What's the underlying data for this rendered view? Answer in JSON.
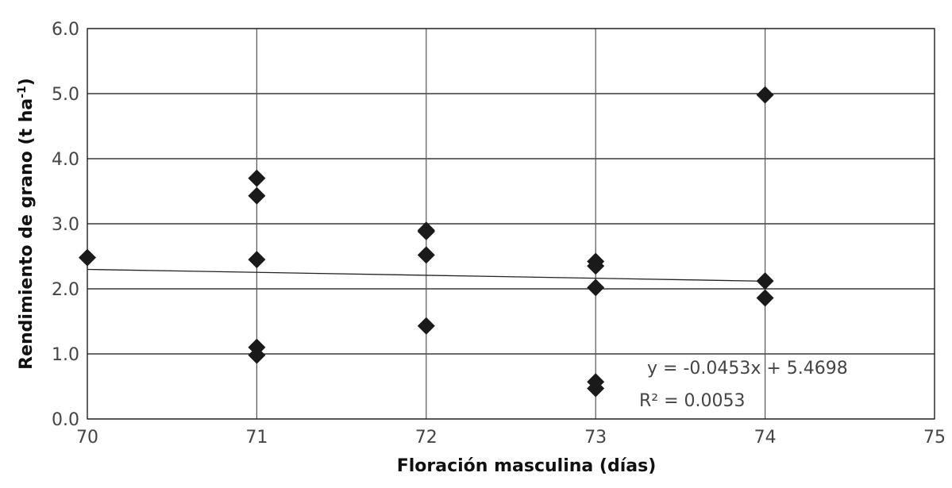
{
  "chart_data": {
    "type": "scatter",
    "title": "",
    "xlabel": "Floración masculina (días)",
    "ylabel": "Rendimiento de grano (t ha-1)",
    "ylabel_main": "Rendimiento de grano (t ha",
    "ylabel_sup": "-1",
    "ylabel_end": ")",
    "xlim": [
      70,
      75
    ],
    "ylim": [
      0,
      6
    ],
    "x_ticks": [
      "70",
      "71",
      "72",
      "73",
      "74",
      "75"
    ],
    "y_ticks": [
      "0.0",
      "1.0",
      "2.0",
      "3.0",
      "4.0",
      "5.0",
      "6.0"
    ],
    "grid": true,
    "marker": "diamond",
    "marker_color": "#1a1a1a",
    "points": [
      {
        "x": 70,
        "y": 2.48
      },
      {
        "x": 71,
        "y": 3.7
      },
      {
        "x": 71,
        "y": 3.43
      },
      {
        "x": 71,
        "y": 2.45
      },
      {
        "x": 71,
        "y": 1.1
      },
      {
        "x": 71,
        "y": 0.98
      },
      {
        "x": 72,
        "y": 2.9
      },
      {
        "x": 72,
        "y": 2.88
      },
      {
        "x": 72,
        "y": 2.52
      },
      {
        "x": 72,
        "y": 1.43
      },
      {
        "x": 73,
        "y": 2.42
      },
      {
        "x": 73,
        "y": 2.35
      },
      {
        "x": 73,
        "y": 2.02
      },
      {
        "x": 73,
        "y": 0.57
      },
      {
        "x": 73,
        "y": 0.47
      },
      {
        "x": 74,
        "y": 4.98
      },
      {
        "x": 74,
        "y": 2.12
      },
      {
        "x": 74,
        "y": 1.86
      }
    ],
    "trendline": {
      "slope": -0.0453,
      "intercept": 5.4698,
      "x_range": [
        70,
        74
      ]
    },
    "annotations": {
      "equation": "y = -0.0453x + 5.4698",
      "r2": "R² = 0.0053"
    }
  }
}
